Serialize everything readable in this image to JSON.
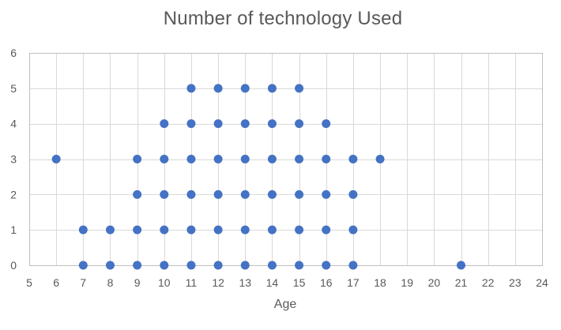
{
  "chart_data": {
    "type": "scatter",
    "title": "Number of technology Used",
    "xlabel": "Age",
    "ylabel": "",
    "xlim": [
      5,
      24
    ],
    "ylim": [
      0,
      6
    ],
    "x_ticks": [
      5,
      6,
      7,
      8,
      9,
      10,
      11,
      12,
      13,
      14,
      15,
      16,
      17,
      18,
      19,
      20,
      21,
      22,
      23,
      24
    ],
    "y_ticks": [
      0,
      1,
      2,
      3,
      4,
      5,
      6
    ],
    "grid": true,
    "marker_color": "#4472c4",
    "points": [
      {
        "x": 6,
        "y": 3
      },
      {
        "x": 7,
        "y": 0
      },
      {
        "x": 7,
        "y": 1
      },
      {
        "x": 8,
        "y": 0
      },
      {
        "x": 8,
        "y": 1
      },
      {
        "x": 9,
        "y": 0
      },
      {
        "x": 9,
        "y": 1
      },
      {
        "x": 9,
        "y": 2
      },
      {
        "x": 9,
        "y": 3
      },
      {
        "x": 10,
        "y": 0
      },
      {
        "x": 10,
        "y": 1
      },
      {
        "x": 10,
        "y": 2
      },
      {
        "x": 10,
        "y": 3
      },
      {
        "x": 10,
        "y": 4
      },
      {
        "x": 11,
        "y": 0
      },
      {
        "x": 11,
        "y": 1
      },
      {
        "x": 11,
        "y": 2
      },
      {
        "x": 11,
        "y": 3
      },
      {
        "x": 11,
        "y": 4
      },
      {
        "x": 11,
        "y": 5
      },
      {
        "x": 12,
        "y": 0
      },
      {
        "x": 12,
        "y": 1
      },
      {
        "x": 12,
        "y": 2
      },
      {
        "x": 12,
        "y": 3
      },
      {
        "x": 12,
        "y": 4
      },
      {
        "x": 12,
        "y": 5
      },
      {
        "x": 13,
        "y": 0
      },
      {
        "x": 13,
        "y": 1
      },
      {
        "x": 13,
        "y": 2
      },
      {
        "x": 13,
        "y": 3
      },
      {
        "x": 13,
        "y": 4
      },
      {
        "x": 13,
        "y": 5
      },
      {
        "x": 14,
        "y": 0
      },
      {
        "x": 14,
        "y": 1
      },
      {
        "x": 14,
        "y": 2
      },
      {
        "x": 14,
        "y": 3
      },
      {
        "x": 14,
        "y": 4
      },
      {
        "x": 14,
        "y": 5
      },
      {
        "x": 15,
        "y": 0
      },
      {
        "x": 15,
        "y": 1
      },
      {
        "x": 15,
        "y": 2
      },
      {
        "x": 15,
        "y": 3
      },
      {
        "x": 15,
        "y": 4
      },
      {
        "x": 15,
        "y": 5
      },
      {
        "x": 16,
        "y": 0
      },
      {
        "x": 16,
        "y": 1
      },
      {
        "x": 16,
        "y": 2
      },
      {
        "x": 16,
        "y": 3
      },
      {
        "x": 16,
        "y": 4
      },
      {
        "x": 17,
        "y": 0
      },
      {
        "x": 17,
        "y": 1
      },
      {
        "x": 17,
        "y": 2
      },
      {
        "x": 17,
        "y": 3
      },
      {
        "x": 18,
        "y": 3
      },
      {
        "x": 21,
        "y": 0
      }
    ]
  }
}
